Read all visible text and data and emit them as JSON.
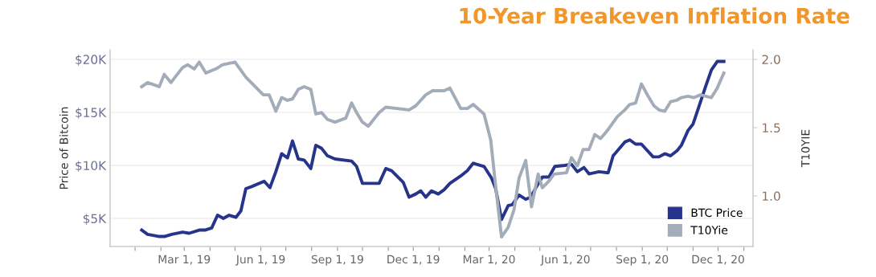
{
  "chart_data": {
    "type": "line",
    "title": "10-Year Breakeven Inflation Rate",
    "ylabel": "Price of Bitcoin",
    "y2label": "T10YIE",
    "series": [
      {
        "name": "BTC Price",
        "color": "#27348b",
        "x": [
          "2019-01-09",
          "2019-01-16",
          "2019-01-29",
          "2019-02-06",
          "2019-02-14",
          "2019-02-27",
          "2019-03-07",
          "2019-03-19",
          "2019-03-26",
          "2019-04-03",
          "2019-04-10",
          "2019-04-17",
          "2019-04-24",
          "2019-05-02",
          "2019-05-08",
          "2019-05-14",
          "2019-05-21",
          "2019-06-05",
          "2019-06-12",
          "2019-06-19",
          "2019-06-26",
          "2019-07-03",
          "2019-07-09",
          "2019-07-16",
          "2019-07-23",
          "2019-07-31",
          "2019-08-06",
          "2019-08-13",
          "2019-08-20",
          "2019-08-29",
          "2019-09-18",
          "2019-09-24",
          "2019-10-01",
          "2019-10-21",
          "2019-10-29",
          "2019-11-05",
          "2019-11-19",
          "2019-11-26",
          "2019-12-04",
          "2019-12-10",
          "2019-12-16",
          "2019-12-23",
          "2019-12-31",
          "2020-01-07",
          "2020-01-14",
          "2020-01-27",
          "2020-02-04",
          "2020-02-11",
          "2020-02-24",
          "2020-03-04",
          "2020-03-09",
          "2020-03-16",
          "2020-03-24",
          "2020-03-29",
          "2020-04-06",
          "2020-04-14",
          "2020-04-20",
          "2020-04-27",
          "2020-05-04",
          "2020-05-12",
          "2020-05-19",
          "2020-05-31",
          "2020-06-08",
          "2020-06-15",
          "2020-06-23",
          "2020-06-29",
          "2020-07-11",
          "2020-07-22",
          "2020-07-28",
          "2020-08-11",
          "2020-08-17",
          "2020-08-24",
          "2020-08-31",
          "2020-09-14",
          "2020-09-21",
          "2020-09-28",
          "2020-10-05",
          "2020-10-13",
          "2020-10-18",
          "2020-10-26",
          "2020-11-01",
          "2020-11-10",
          "2020-11-15",
          "2020-11-23",
          "2020-11-30",
          "2020-12-08"
        ],
        "values": [
          3900,
          3500,
          3300,
          3300,
          3500,
          3700,
          3600,
          3900,
          3900,
          4100,
          5300,
          5000,
          5300,
          5100,
          5700,
          7800,
          8000,
          8500,
          7900,
          9400,
          11100,
          10700,
          12300,
          10600,
          10500,
          9700,
          11900,
          11600,
          10900,
          10600,
          10400,
          9900,
          8300,
          8300,
          9700,
          9500,
          8400,
          7000,
          7300,
          7600,
          7000,
          7600,
          7300,
          7700,
          8300,
          9000,
          9500,
          10200,
          9900,
          8800,
          7800,
          4900,
          6200,
          6300,
          7200,
          6800,
          7000,
          8000,
          8900,
          8900,
          9900,
          10000,
          10100,
          9400,
          9800,
          9200,
          9400,
          9300,
          10900,
          12200,
          12400,
          12000,
          12000,
          10800,
          10800,
          11100,
          10900,
          11400,
          11900,
          13300,
          13900,
          16000,
          17200,
          19000,
          19800,
          19800
        ]
      },
      {
        "name": "T10Yie",
        "color": "#a3acb9",
        "axis": "y2",
        "x": [
          "2019-01-09",
          "2019-01-16",
          "2019-01-30",
          "2019-02-05",
          "2019-02-13",
          "2019-02-27",
          "2019-03-05",
          "2019-03-13",
          "2019-03-19",
          "2019-03-27",
          "2019-04-08",
          "2019-04-16",
          "2019-05-01",
          "2019-05-14",
          "2019-06-04",
          "2019-06-11",
          "2019-06-19",
          "2019-06-26",
          "2019-07-03",
          "2019-07-09",
          "2019-07-16",
          "2019-07-23",
          "2019-07-31",
          "2019-08-06",
          "2019-08-13",
          "2019-08-20",
          "2019-08-29",
          "2019-09-11",
          "2019-09-18",
          "2019-09-24",
          "2019-10-01",
          "2019-10-08",
          "2019-10-21",
          "2019-10-29",
          "2019-11-26",
          "2019-12-04",
          "2019-12-16",
          "2019-12-24",
          "2020-01-07",
          "2020-01-14",
          "2020-01-27",
          "2020-02-04",
          "2020-02-11",
          "2020-02-24",
          "2020-03-03",
          "2020-03-09",
          "2020-03-16",
          "2020-03-24",
          "2020-03-31",
          "2020-04-06",
          "2020-04-14",
          "2020-04-21",
          "2020-04-29",
          "2020-05-04",
          "2020-05-12",
          "2020-05-18",
          "2020-06-02",
          "2020-06-08",
          "2020-06-15",
          "2020-06-22",
          "2020-06-29",
          "2020-07-06",
          "2020-07-13",
          "2020-07-20",
          "2020-08-02",
          "2020-08-11",
          "2020-08-17",
          "2020-08-24",
          "2020-08-31",
          "2020-09-08",
          "2020-09-15",
          "2020-09-21",
          "2020-09-28",
          "2020-10-05",
          "2020-10-12",
          "2020-10-18",
          "2020-10-26",
          "2020-11-02",
          "2020-11-10",
          "2020-11-23",
          "2020-11-30",
          "2020-12-08"
        ],
        "values": [
          1.8,
          1.83,
          1.8,
          1.89,
          1.83,
          1.94,
          1.96,
          1.93,
          1.98,
          1.9,
          1.93,
          1.96,
          1.98,
          1.87,
          1.74,
          1.74,
          1.62,
          1.72,
          1.7,
          1.71,
          1.78,
          1.8,
          1.78,
          1.6,
          1.61,
          1.56,
          1.54,
          1.57,
          1.68,
          1.61,
          1.54,
          1.51,
          1.61,
          1.65,
          1.63,
          1.66,
          1.74,
          1.77,
          1.77,
          1.79,
          1.64,
          1.64,
          1.67,
          1.6,
          1.41,
          1.07,
          0.7,
          0.77,
          0.9,
          1.13,
          1.26,
          0.92,
          1.16,
          1.06,
          1.11,
          1.16,
          1.17,
          1.28,
          1.22,
          1.34,
          1.34,
          1.45,
          1.42,
          1.47,
          1.58,
          1.63,
          1.67,
          1.68,
          1.82,
          1.73,
          1.66,
          1.63,
          1.62,
          1.69,
          1.7,
          1.72,
          1.73,
          1.72,
          1.74,
          1.72,
          1.79,
          1.9
        ]
      }
    ],
    "xlim": [
      "2018-12-02",
      "2021-01-12"
    ],
    "xticks": [
      {
        "value": "2019-01-01",
        "label": null
      },
      {
        "value": "2019-02-01",
        "label": null
      },
      {
        "value": "2019-03-01",
        "label": "Mar 1, 19"
      },
      {
        "value": "2019-04-01",
        "label": null
      },
      {
        "value": "2019-05-01",
        "label": null
      },
      {
        "value": "2019-06-01",
        "label": "Jun 1, 19"
      },
      {
        "value": "2019-07-01",
        "label": null
      },
      {
        "value": "2019-08-01",
        "label": null
      },
      {
        "value": "2019-09-01",
        "label": "Sep 1, 19"
      },
      {
        "value": "2019-10-01",
        "label": null
      },
      {
        "value": "2019-11-01",
        "label": null
      },
      {
        "value": "2019-12-01",
        "label": "Dec 1, 19"
      },
      {
        "value": "2020-01-01",
        "label": null
      },
      {
        "value": "2020-02-01",
        "label": null
      },
      {
        "value": "2020-03-01",
        "label": "Mar 1, 20"
      },
      {
        "value": "2020-04-01",
        "label": null
      },
      {
        "value": "2020-05-01",
        "label": null
      },
      {
        "value": "2020-06-01",
        "label": "Jun 1, 20"
      },
      {
        "value": "2020-07-01",
        "label": null
      },
      {
        "value": "2020-08-01",
        "label": null
      },
      {
        "value": "2020-09-01",
        "label": "Sep 1, 20"
      },
      {
        "value": "2020-10-01",
        "label": null
      },
      {
        "value": "2020-11-01",
        "label": null
      },
      {
        "value": "2020-12-01",
        "label": "Dec 1, 20"
      },
      {
        "value": "2021-01-01",
        "label": null
      }
    ],
    "ylim": [
      2350,
      20900
    ],
    "yticks": [
      {
        "value": 5000,
        "label": "$5K"
      },
      {
        "value": 10000,
        "label": "$10K"
      },
      {
        "value": 15000,
        "label": "$15K"
      },
      {
        "value": 20000,
        "label": "$20K"
      }
    ],
    "y2lim": [
      0.63,
      2.07
    ],
    "y2ticks": [
      {
        "value": 1.0,
        "label": "1.0"
      },
      {
        "value": 1.5,
        "label": "1.5"
      },
      {
        "value": 2.0,
        "label": "2.0"
      }
    ],
    "grid": "y",
    "legend": "bottom right",
    "marker": "none",
    "line_style": "solid"
  }
}
